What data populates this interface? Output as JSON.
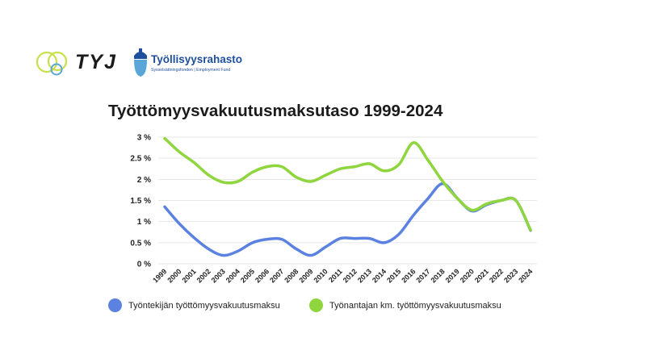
{
  "logos": {
    "tyj": "TYJ",
    "fund_name": "Työllisyysrahasto",
    "fund_subtitle": "Sysselsättningsfonden | Employment Fund"
  },
  "colors": {
    "series_employee": "#5b82e0",
    "series_employer": "#8fd63e",
    "grid": "#e6e6e6",
    "tyj_yellow": "#c8e04a",
    "tyj_blue": "#5aa6d9",
    "fund_blue": "#1f4e9c"
  },
  "chart_data": {
    "type": "line",
    "title": "Työttömyysvakuutusmaksutaso 1999-2024",
    "xlabel": "",
    "ylabel": "",
    "categories": [
      "1999",
      "2000",
      "2001",
      "2002",
      "2003",
      "2004",
      "2005",
      "2006",
      "2007",
      "2008",
      "2009",
      "2010",
      "2011",
      "2012",
      "2013",
      "2014",
      "2015",
      "2016",
      "2017",
      "2018",
      "2019",
      "2020",
      "2021",
      "2022",
      "2023",
      "2024"
    ],
    "y_ticks": [
      "0 %",
      "0.5 %",
      "1 %",
      "1.5 %",
      "2 %",
      "2.5 %",
      "3 %"
    ],
    "ylim": [
      0,
      3
    ],
    "grid": true,
    "legend_position": "bottom",
    "series": [
      {
        "name": "Työntekijän työttömyysvakuutusmaksu",
        "values": [
          1.35,
          0.95,
          0.62,
          0.35,
          0.2,
          0.3,
          0.5,
          0.58,
          0.58,
          0.35,
          0.2,
          0.4,
          0.6,
          0.6,
          0.6,
          0.5,
          0.7,
          1.15,
          1.55,
          1.9,
          1.55,
          1.25,
          1.4,
          1.5,
          1.5,
          0.79
        ],
        "color": "#5b82e0"
      },
      {
        "name": "Työnantajan km. työttömyysvakuutusmaksu",
        "values": [
          2.97,
          2.65,
          2.4,
          2.1,
          1.93,
          1.95,
          2.17,
          2.3,
          2.3,
          2.05,
          1.95,
          2.1,
          2.25,
          2.3,
          2.37,
          2.2,
          2.35,
          2.87,
          2.45,
          1.95,
          1.55,
          1.27,
          1.42,
          1.5,
          1.5,
          0.8
        ],
        "color": "#8fd63e"
      }
    ]
  }
}
